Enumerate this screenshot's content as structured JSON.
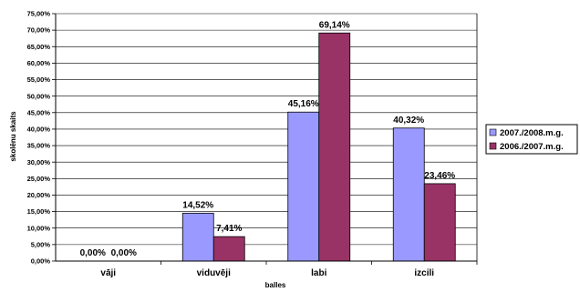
{
  "chart_data": {
    "type": "bar",
    "categories": [
      "vāji",
      "viduvēji",
      "labi",
      "izcili"
    ],
    "series": [
      {
        "name": "2007./2008.m.g.",
        "values": [
          0.0,
          14.52,
          45.16,
          40.32
        ],
        "labels": [
          "0,00%",
          "14,52%",
          "45,16%",
          "40,32%"
        ],
        "color": "#9999ff"
      },
      {
        "name": "2006./2007.m.g.",
        "values": [
          0.0,
          7.41,
          69.14,
          23.46
        ],
        "labels": [
          "0,00%",
          "7,41%",
          "69,14%",
          "23,46%"
        ],
        "color": "#993366"
      }
    ],
    "xlabel": "balles",
    "ylabel": "skolēnu skaits",
    "ylim": [
      0,
      75
    ],
    "ytick_step": 5,
    "yticks": [
      "0,00%",
      "5,00%",
      "10,00%",
      "15,00%",
      "20,00%",
      "25,00%",
      "30,00%",
      "35,00%",
      "40,00%",
      "45,00%",
      "50,00%",
      "55,00%",
      "60,00%",
      "65,00%",
      "70,00%",
      "75,00%"
    ],
    "grid": true,
    "legend_position": "right"
  }
}
